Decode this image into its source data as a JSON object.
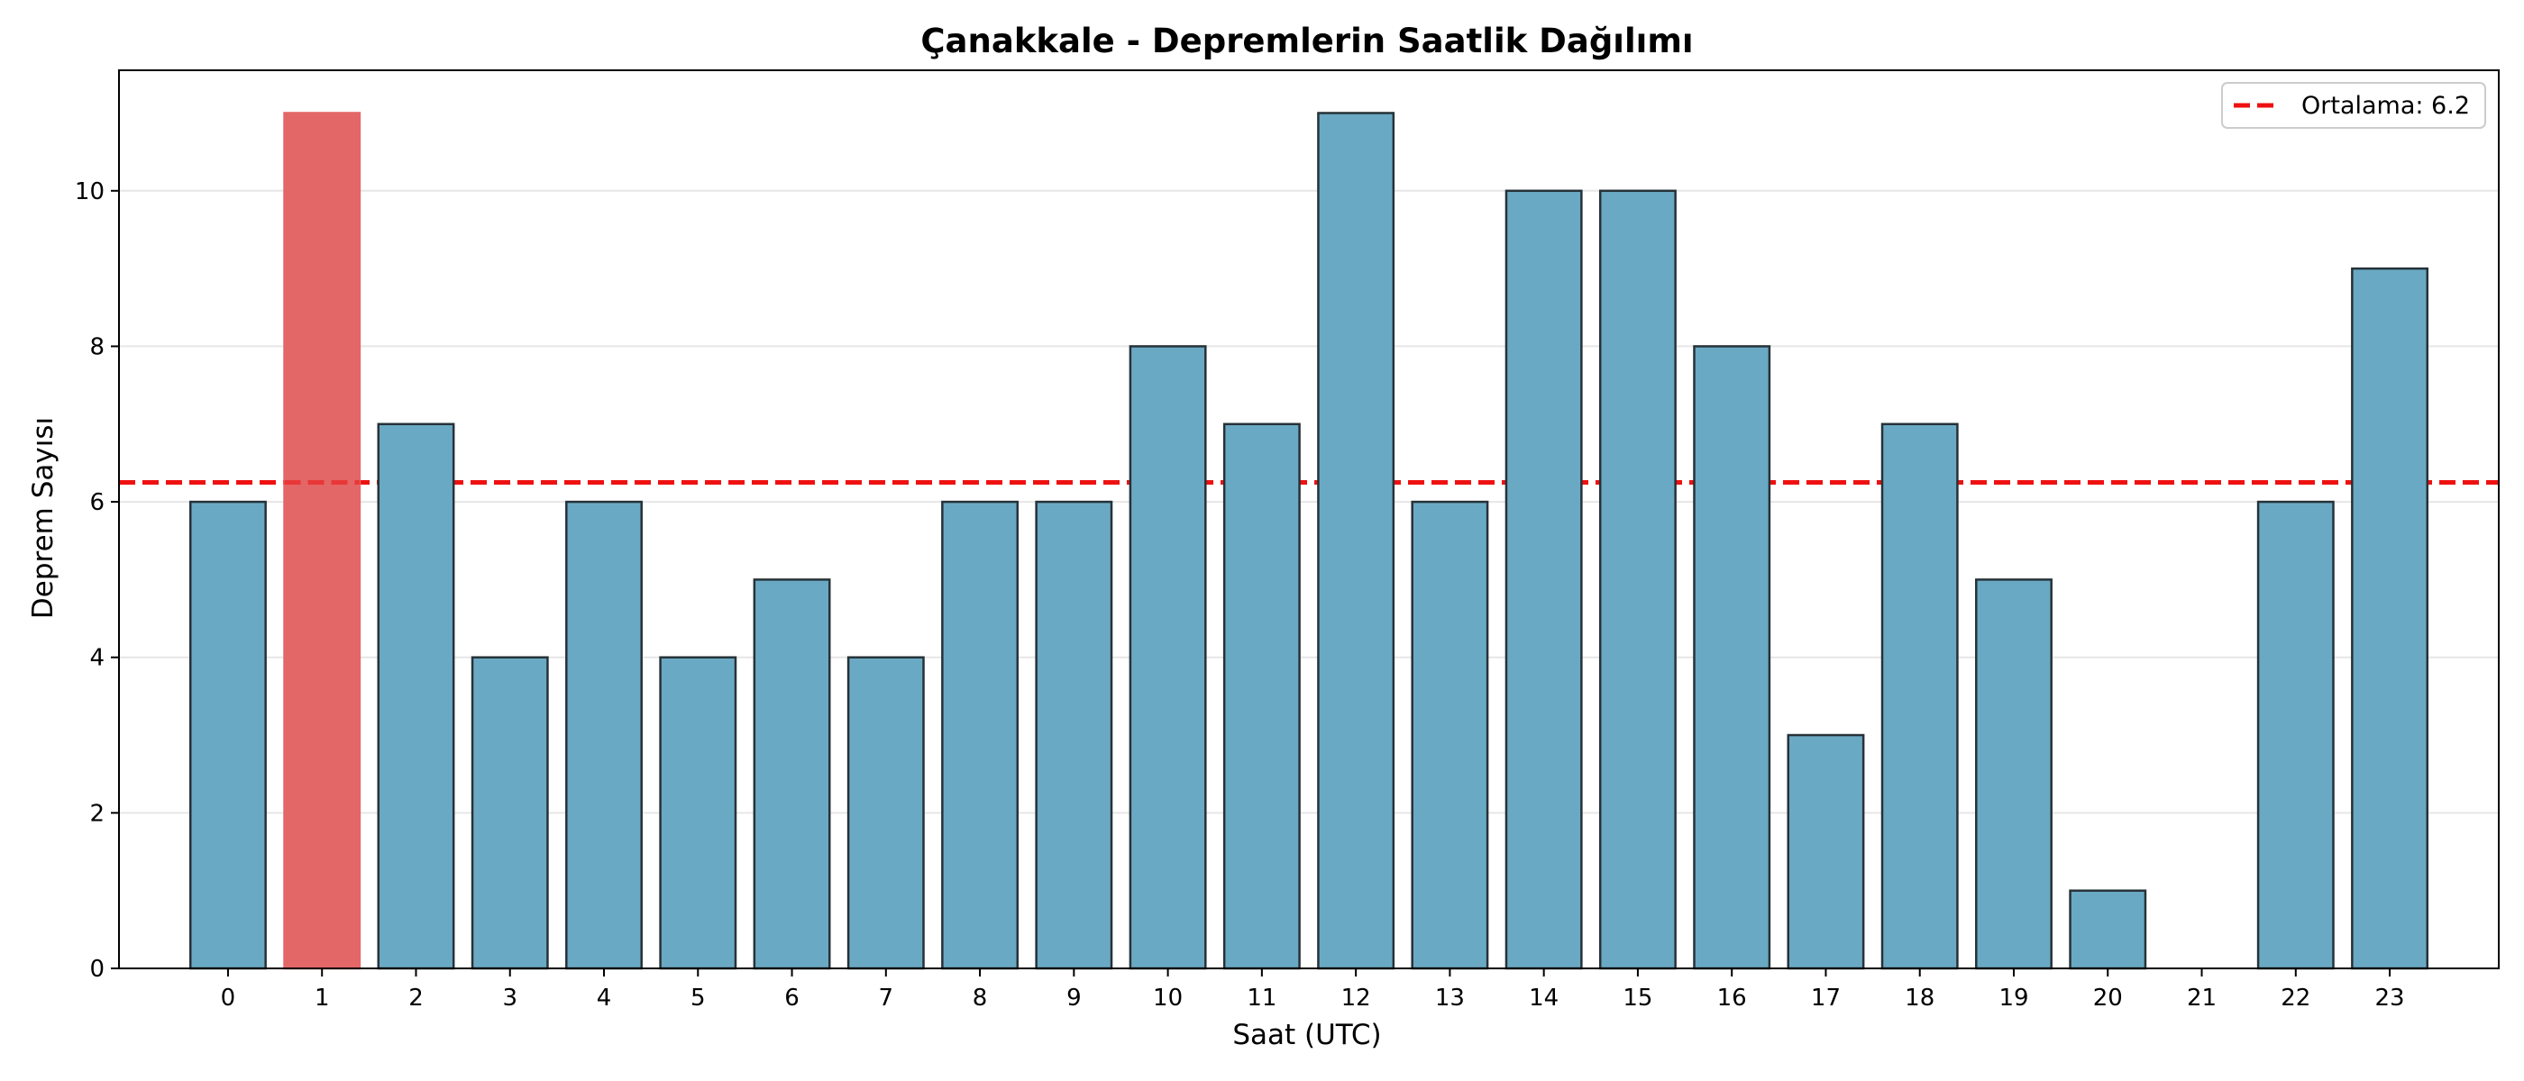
{
  "chart_data": {
    "type": "bar",
    "title": "Çanakkale - Depremlerin Saatlik Dağılımı",
    "xlabel": "Saat (UTC)",
    "ylabel": "Deprem Sayısı",
    "categories": [
      "0",
      "1",
      "2",
      "3",
      "4",
      "5",
      "6",
      "7",
      "8",
      "9",
      "10",
      "11",
      "12",
      "13",
      "14",
      "15",
      "16",
      "17",
      "18",
      "19",
      "20",
      "21",
      "22",
      "23"
    ],
    "values": [
      6,
      11,
      7,
      4,
      6,
      4,
      5,
      4,
      6,
      6,
      8,
      7,
      11,
      6,
      10,
      10,
      8,
      3,
      7,
      5,
      1,
      0,
      6,
      9
    ],
    "highlight_index": 1,
    "ylim": [
      0,
      11.55
    ],
    "yticks": [
      0,
      2,
      4,
      6,
      8,
      10
    ],
    "grid": "y",
    "mean_line": {
      "value": 6.25,
      "label": "Ortalama: 6.2",
      "style": "dashed"
    },
    "legend_position": "top-right",
    "colors": {
      "bar": "#6aa9c4",
      "bar_highlight": "#e36767",
      "bar_edge": "#263238",
      "mean_line": "#ee1111",
      "grid": "#e6e6e6"
    }
  }
}
